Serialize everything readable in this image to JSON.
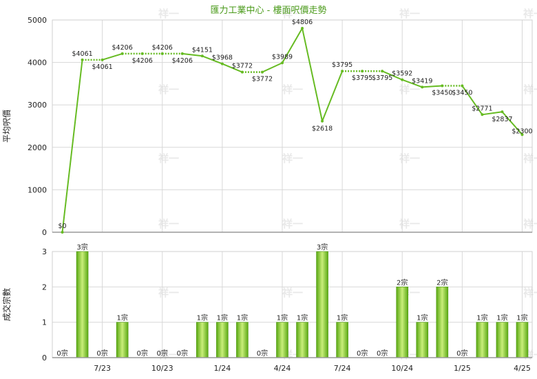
{
  "chart_data": [
    {
      "type": "line",
      "title": "匯力工業中心 - 樓面呎價走勢",
      "ylabel": "平均呎價",
      "ylim": [
        0,
        5000
      ],
      "yticks": [
        "0",
        "1000",
        "2000",
        "3000",
        "4000",
        "5000"
      ],
      "grid": true,
      "series": [
        {
          "values": [
            0,
            4061,
            4061,
            4206,
            4206,
            4206,
            4206,
            4151,
            3968,
            3772,
            3772,
            3989,
            4806,
            2618,
            3795,
            3795,
            3795,
            3592,
            3419,
            3450,
            3450,
            2771,
            2837,
            2300
          ],
          "labels": [
            "$0",
            "$4061",
            "$4061",
            "$4206",
            "$4206",
            "$4206",
            "$4206",
            "$4151",
            "$3968",
            "$3772",
            "$3772",
            "$3989",
            "$4806",
            "$2618",
            "$3795",
            "$3795",
            "$3795",
            "$3592",
            "$3419",
            "$3450",
            "$3450",
            "$2771",
            "$2837",
            "$2300"
          ]
        }
      ]
    },
    {
      "type": "bar",
      "ylabel": "成交宗數",
      "ylim": [
        0,
        3
      ],
      "yticks": [
        "0",
        "1",
        "2",
        "3"
      ],
      "xticks": [
        "7/23",
        "10/23",
        "1/24",
        "4/24",
        "7/24",
        "10/24",
        "1/25",
        "4/25"
      ],
      "grid": true,
      "values": [
        0,
        3,
        0,
        1,
        0,
        0,
        0,
        1,
        1,
        1,
        0,
        1,
        1,
        3,
        1,
        0,
        0,
        2,
        1,
        2,
        0,
        1,
        1,
        1
      ],
      "labels": [
        "0宗",
        "3宗",
        "0宗",
        "1宗",
        "0宗",
        "0宗",
        "0宗",
        "1宗",
        "1宗",
        "1宗",
        "0宗",
        "1宗",
        "1宗",
        "3宗",
        "1宗",
        "0宗",
        "0宗",
        "2宗",
        "1宗",
        "2宗",
        "0宗",
        "1宗",
        "1宗",
        "1宗"
      ]
    }
  ],
  "watermark": "祥一",
  "colors": {
    "line": "#66bb22",
    "bar_dark": "#5aa814",
    "bar_light": "#c9ee7a",
    "grid": "#d8d8d8",
    "title": "#4a9a1a"
  }
}
